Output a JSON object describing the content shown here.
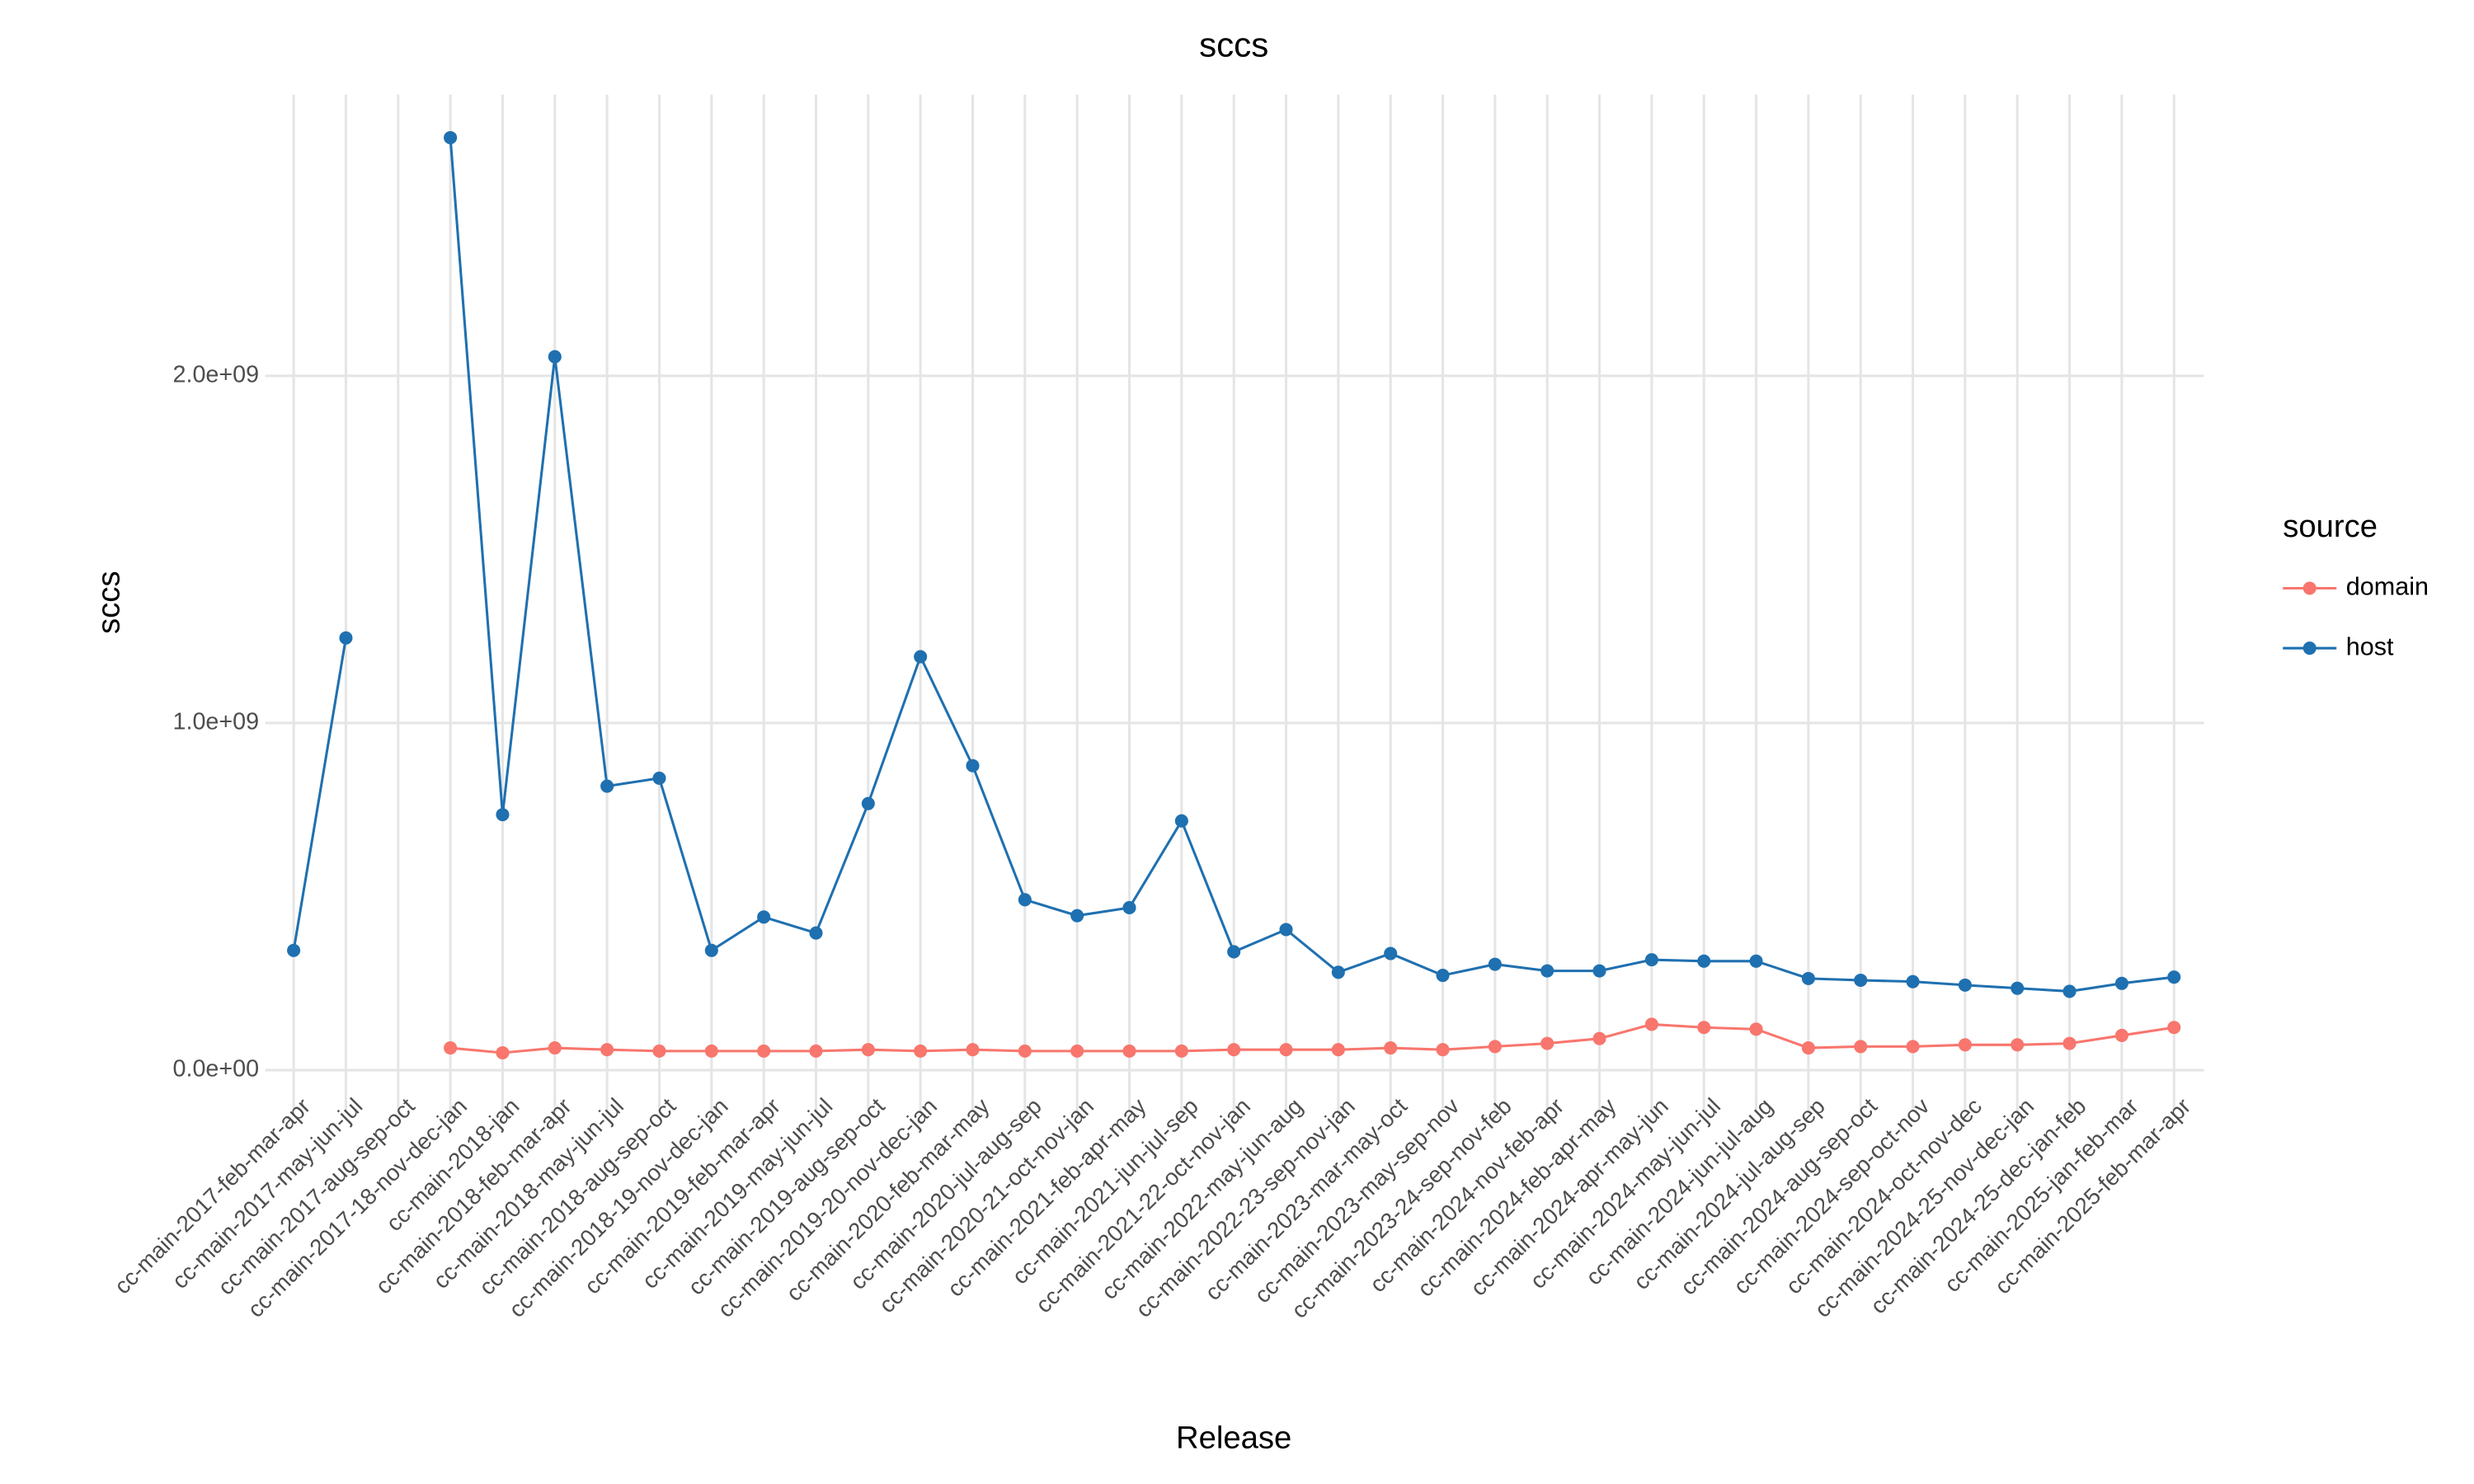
{
  "chart_data": {
    "type": "line",
    "title": "sccs",
    "x_label": "Release",
    "y_label": "sccs",
    "legend_title": "source",
    "legend": "right",
    "grid": true,
    "categories": [
      "cc-main-2017-feb-mar-apr",
      "cc-main-2017-may-jun-jul",
      "cc-main-2017-aug-sep-oct",
      "cc-main-2017-18-nov-dec-jan",
      "cc-main-2018-jan",
      "cc-main-2018-feb-mar-apr",
      "cc-main-2018-may-jun-jul",
      "cc-main-2018-aug-sep-oct",
      "cc-main-2018-19-nov-dec-jan",
      "cc-main-2019-feb-mar-apr",
      "cc-main-2019-may-jun-jul",
      "cc-main-2019-aug-sep-oct",
      "cc-main-2019-20-nov-dec-jan",
      "cc-main-2020-feb-mar-may",
      "cc-main-2020-jul-aug-sep",
      "cc-main-2020-21-oct-nov-jan",
      "cc-main-2021-feb-apr-may",
      "cc-main-2021-jun-jul-sep",
      "cc-main-2021-22-oct-nov-jan",
      "cc-main-2022-may-jun-aug",
      "cc-main-2022-23-sep-nov-jan",
      "cc-main-2023-mar-may-oct",
      "cc-main-2023-may-sep-nov",
      "cc-main-2023-24-sep-nov-feb",
      "cc-main-2024-nov-feb-apr",
      "cc-main-2024-feb-apr-may",
      "cc-main-2024-apr-may-jun",
      "cc-main-2024-may-jun-jul",
      "cc-main-2024-jun-jul-aug",
      "cc-main-2024-jul-aug-sep",
      "cc-main-2024-aug-sep-oct",
      "cc-main-2024-sep-oct-nov",
      "cc-main-2024-oct-nov-dec",
      "cc-main-2024-25-nov-dec-jan",
      "cc-main-2024-25-dec-jan-feb",
      "cc-main-2025-jan-feb-mar",
      "cc-main-2025-feb-mar-apr"
    ],
    "series": [
      {
        "name": "domain",
        "color": "#F8766D",
        "values": [
          null,
          null,
          null,
          64000000,
          50000000,
          64000000,
          59000000,
          55000000,
          55000000,
          55000000,
          55000000,
          59000000,
          55000000,
          59000000,
          55000000,
          55000000,
          55000000,
          55000000,
          59000000,
          59000000,
          59000000,
          64000000,
          59000000,
          68000000,
          77000000,
          91000000,
          132000000,
          123000000,
          118000000,
          64000000,
          68000000,
          68000000,
          73000000,
          73000000,
          77000000,
          100000000,
          123000000
        ]
      },
      {
        "name": "host",
        "color": "#1F70B0",
        "values": [
          345000000,
          1245000000,
          null,
          2686000000,
          736000000,
          2055000000,
          818000000,
          841000000,
          345000000,
          441000000,
          395000000,
          768000000,
          1191000000,
          877000000,
          491000000,
          445000000,
          468000000,
          718000000,
          341000000,
          405000000,
          282000000,
          336000000,
          273000000,
          305000000,
          286000000,
          286000000,
          318000000,
          314000000,
          314000000,
          264000000,
          259000000,
          255000000,
          245000000,
          236000000,
          227000000,
          250000000,
          268000000
        ]
      }
    ],
    "ylim": [
      -120000000,
      2810000000
    ],
    "yticks": [
      {
        "value": 0,
        "label": "0.0e+00"
      },
      {
        "value": 1000000000,
        "label": "1.0e+09"
      },
      {
        "value": 2000000000,
        "label": "2.0e+09"
      }
    ]
  }
}
